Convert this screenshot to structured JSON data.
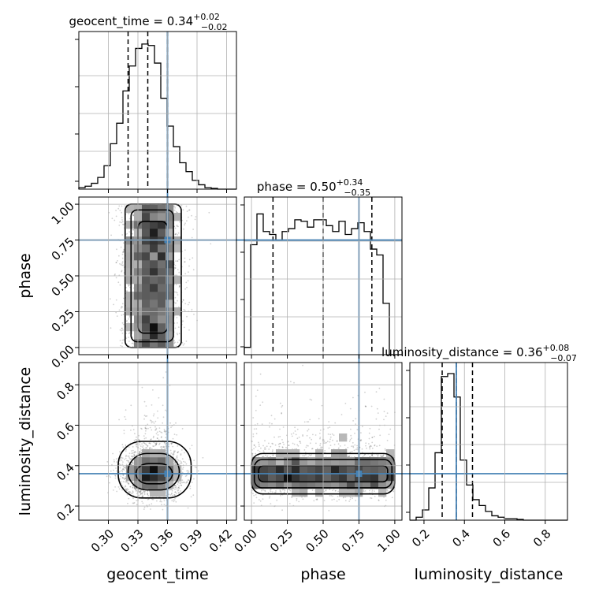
{
  "chart_data": {
    "type": "corner",
    "truth_color": "#4682b4",
    "parameters": [
      {
        "name": "geocent_time",
        "label": "geocent_time",
        "range": [
          0.27,
          0.43
        ],
        "truth": 0.36,
        "ticks": [
          0.3,
          0.33,
          0.36,
          0.39,
          0.42
        ],
        "tick_labels": [
          "0.30",
          "0.33",
          "0.36",
          "0.39",
          "0.42"
        ],
        "quantiles": [
          0.32,
          0.34,
          0.36
        ],
        "title_main": "geocent_time = 0.34",
        "title_sup": "+0.02",
        "title_sub": "−0.02"
      },
      {
        "name": "phase",
        "label": "phase",
        "range": [
          -0.05,
          1.05
        ],
        "truth": 0.75,
        "ticks": [
          0.0,
          0.25,
          0.5,
          0.75,
          1.0
        ],
        "tick_labels": [
          "0.00",
          "0.25",
          "0.50",
          "0.75",
          "1.00"
        ],
        "quantiles": [
          0.15,
          0.5,
          0.84
        ],
        "title_main": "phase = 0.50",
        "title_sup": "+0.34",
        "title_sub": "−0.35"
      },
      {
        "name": "luminosity_distance",
        "label": "luminosity_distance",
        "range": [
          0.13,
          0.91
        ],
        "truth": 0.36,
        "ticks": [
          0.2,
          0.4,
          0.6,
          0.8
        ],
        "tick_labels": [
          "0.2",
          "0.4",
          "0.6",
          "0.8"
        ],
        "quantiles": [
          0.29,
          0.36,
          0.44
        ],
        "title_main": "luminosity_distance = 0.36",
        "title_sup": "+0.08",
        "title_sub": "−0.07"
      }
    ],
    "histograms": [
      {
        "param": "geocent_time",
        "counts": [
          0.01,
          0.02,
          0.04,
          0.08,
          0.16,
          0.31,
          0.45,
          0.67,
          0.84,
          0.96,
          0.99,
          0.98,
          0.86,
          0.62,
          0.43,
          0.29,
          0.18,
          0.12,
          0.06,
          0.03,
          0.01,
          0.005,
          0.0,
          0.0,
          0.0
        ]
      },
      {
        "param": "phase",
        "counts": [
          0.05,
          0.75,
          0.96,
          0.84,
          0.82,
          0.78,
          0.84,
          0.86,
          0.92,
          0.91,
          0.87,
          0.92,
          0.92,
          0.88,
          0.84,
          0.91,
          0.82,
          0.86,
          0.9,
          0.84,
          0.72,
          0.68,
          0.35,
          0.0,
          0.0
        ]
      },
      {
        "param": "luminosity_distance",
        "counts": [
          0.0,
          0.02,
          0.07,
          0.22,
          0.46,
          0.98,
          1.0,
          0.84,
          0.41,
          0.24,
          0.14,
          0.1,
          0.06,
          0.03,
          0.02,
          0.01,
          0.01,
          0.005,
          0.0,
          0.0,
          0.0,
          0.0,
          0.0,
          0.0,
          0.0
        ]
      }
    ],
    "scatter_2d": [
      {
        "x": "geocent_time",
        "y": "phase",
        "x_mean": 0.345,
        "x_std": 0.015,
        "y_range": [
          0.0,
          1.0
        ]
      },
      {
        "x": "geocent_time",
        "y": "luminosity_distance",
        "x_mean": 0.345,
        "x_std": 0.015,
        "y_mean": 0.36,
        "y_std": 0.06
      },
      {
        "x": "phase",
        "y": "luminosity_distance",
        "x_range": [
          0.0,
          1.0
        ],
        "y_mean": 0.36,
        "y_std": 0.06
      }
    ]
  }
}
